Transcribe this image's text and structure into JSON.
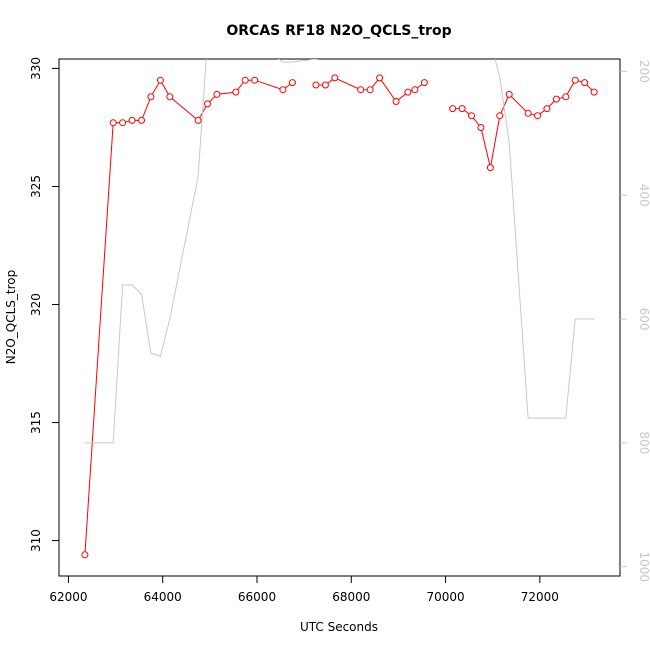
{
  "chart_data": {
    "type": "line",
    "title": "ORCAS RF18 N2O_QCLS_trop",
    "xlabel": "UTC Seconds",
    "ylabel": "N2O_QCLS_trop",
    "xlim": [
      61800,
      73700
    ],
    "ylim": [
      308.5,
      330.4
    ],
    "y2lim": [
      1015,
      180
    ],
    "x_ticks": [
      62000,
      64000,
      66000,
      68000,
      70000,
      72000
    ],
    "y_ticks": [
      310,
      315,
      320,
      325,
      330
    ],
    "y2_ticks": [
      200,
      400,
      600,
      800,
      1000
    ],
    "grid": false,
    "series": [
      {
        "color": "#ff0000",
        "marker": "circle",
        "axis": "left",
        "x": [
          62350,
          62950,
          63150,
          63350,
          63550,
          63750,
          63950,
          64150,
          64750,
          64950,
          65150,
          65550,
          65750,
          65950,
          66550,
          66750,
          67250,
          67450,
          67650,
          68200,
          68400,
          68600,
          68950,
          69200,
          69350,
          69550,
          70150,
          70350,
          70550,
          70750,
          70950,
          71150,
          71350,
          71750,
          71950,
          72150,
          72350,
          72550,
          72750,
          72950,
          73150
        ],
        "y": [
          309.4,
          327.7,
          327.7,
          327.8,
          327.8,
          328.8,
          329.5,
          328.8,
          327.8,
          328.5,
          328.9,
          329.0,
          329.5,
          329.5,
          329.1,
          329.4,
          329.3,
          329.3,
          329.6,
          329.1,
          329.1,
          329.6,
          328.6,
          329.0,
          329.1,
          329.4,
          328.3,
          328.3,
          328.0,
          327.5,
          325.8,
          328.0,
          328.9,
          328.1,
          328.0,
          328.3,
          328.7,
          328.8,
          329.5,
          329.4,
          329.0
        ],
        "gaps_after_x": [
          66750,
          69550
        ]
      },
      {
        "color": "#c8c8c8",
        "marker": "none",
        "axis": "right",
        "x": [
          62350,
          62950,
          63150,
          63350,
          63550,
          63750,
          63950,
          64150,
          64750,
          64950,
          65150,
          65550,
          65750,
          65950,
          66550,
          66750,
          70150,
          70350,
          70550,
          70750,
          70950,
          71150,
          71350,
          71750,
          71950,
          72150,
          72350,
          72550,
          72750,
          72950,
          73150
        ],
        "y": [
          800,
          800,
          545,
          545,
          560,
          655,
          660,
          600,
          370,
          150,
          150,
          150,
          150,
          150,
          185,
          185,
          150,
          150,
          150,
          150,
          150,
          210,
          315,
          760,
          760,
          760,
          760,
          760,
          600,
          600,
          600
        ]
      }
    ]
  }
}
